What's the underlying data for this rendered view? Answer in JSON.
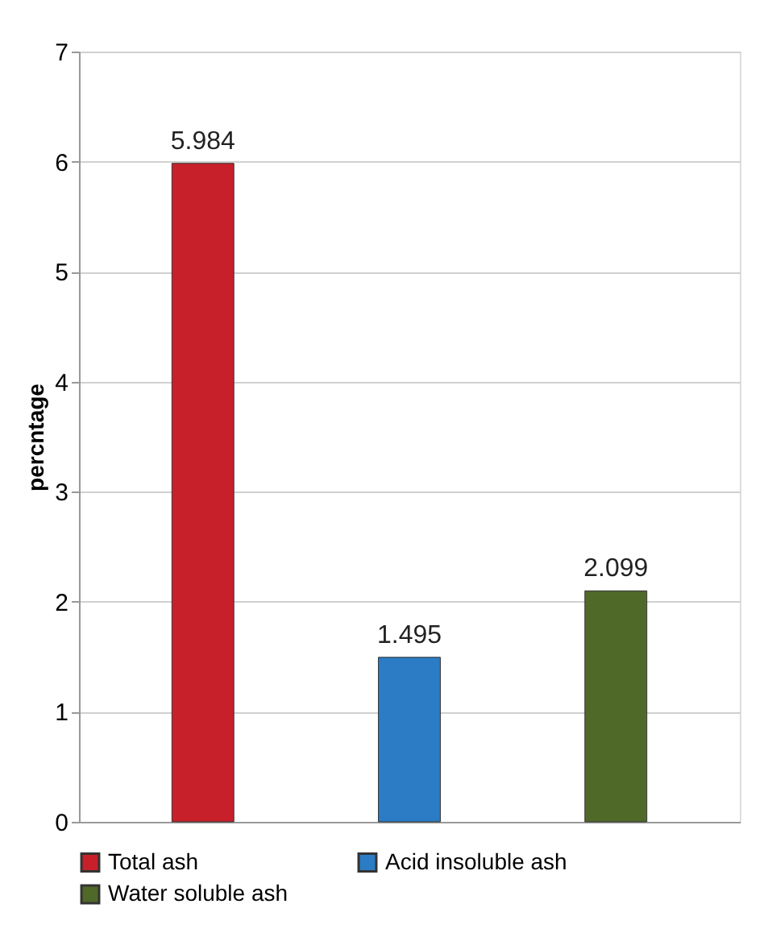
{
  "chart_data": {
    "type": "bar",
    "ylabel": "percntage",
    "categories": [
      null,
      null,
      null
    ],
    "series": [
      {
        "name": "Total ash",
        "color": "#c8202a",
        "values": [
          5.984,
          null,
          null
        ]
      },
      {
        "name": "Acid insoluble ash",
        "color": "#2b7cc4",
        "values": [
          null,
          1.495,
          null
        ]
      },
      {
        "name": "Water soluble ash",
        "color": "#4f6a28",
        "values": [
          null,
          null,
          2.099
        ]
      }
    ],
    "ylim": [
      0,
      7
    ],
    "yticks": [
      0,
      1,
      2,
      3,
      4,
      5,
      6,
      7
    ],
    "grid": "y",
    "legend": "bottom",
    "data_labels": true,
    "tick_labels": "y"
  }
}
